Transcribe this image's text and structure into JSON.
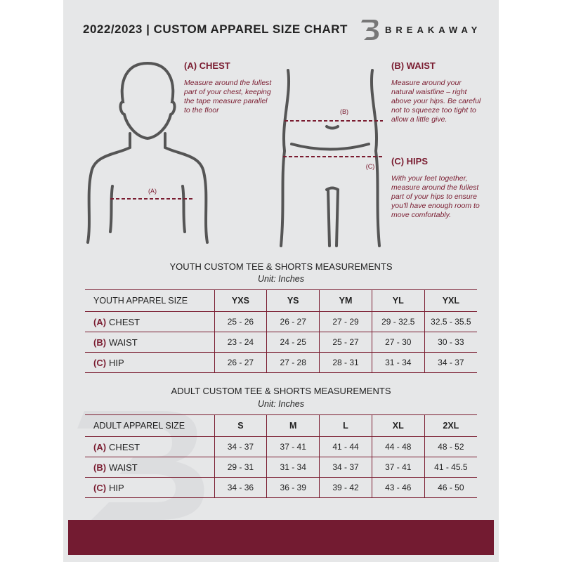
{
  "header": {
    "title": "2022/2023  |  CUSTOM APPAREL SIZE CHART",
    "brand": "BREAKAWAY"
  },
  "measures": {
    "chest": {
      "title": "(A) CHEST",
      "text": "Measure around the fullest part of your chest, keeping the tape measure parallel to the floor",
      "marker": "(A)"
    },
    "waist": {
      "title": "(B) WAIST",
      "text": "Measure around your natural waistline – right above your hips. Be careful not to squeeze too tight to allow a little give.",
      "marker": "(B)"
    },
    "hips": {
      "title": "(C) HIPS",
      "text": "With your feet together, measure around the fullest part of your hips to ensure you'll have enough room to move comfortably.",
      "marker": "(C)"
    }
  },
  "youth": {
    "title": "YOUTH CUSTOM TEE & SHORTS MEASUREMENTS",
    "unit": "Unit: Inches",
    "header": "YOUTH APPAREL SIZE",
    "sizes": [
      "YXS",
      "YS",
      "YM",
      "YL",
      "YXL"
    ],
    "rows": [
      {
        "letter": "(A)",
        "name": "CHEST",
        "values": [
          "25 - 26",
          "26 - 27",
          "27 - 29",
          "29 - 32.5",
          "32.5 - 35.5"
        ]
      },
      {
        "letter": "(B)",
        "name": "WAIST",
        "values": [
          "23 - 24",
          "24 - 25",
          "25 - 27",
          "27 - 30",
          "30 - 33"
        ]
      },
      {
        "letter": "(C)",
        "name": "HIP",
        "values": [
          "26 - 27",
          "27 - 28",
          "28 - 31",
          "31 - 34",
          "34 - 37"
        ]
      }
    ]
  },
  "adult": {
    "title": "ADULT CUSTOM TEE & SHORTS MEASUREMENTS",
    "unit": "Unit: Inches",
    "header": "ADULT APPAREL SIZE",
    "sizes": [
      "S",
      "M",
      "L",
      "XL",
      "2XL"
    ],
    "rows": [
      {
        "letter": "(A)",
        "name": "CHEST",
        "values": [
          "34 - 37",
          "37 - 41",
          "41 - 44",
          "44 - 48",
          "48 - 52"
        ]
      },
      {
        "letter": "(B)",
        "name": "WAIST",
        "values": [
          "29 - 31",
          "31 - 34",
          "34 - 37",
          "37 - 41",
          "41 - 45.5"
        ]
      },
      {
        "letter": "(C)",
        "name": "HIP",
        "values": [
          "34 - 36",
          "36 - 39",
          "39 - 42",
          "43 - 46",
          "46 - 50"
        ]
      }
    ]
  },
  "colors": {
    "accent": "#731b31",
    "panel": "#e6e7e8"
  }
}
